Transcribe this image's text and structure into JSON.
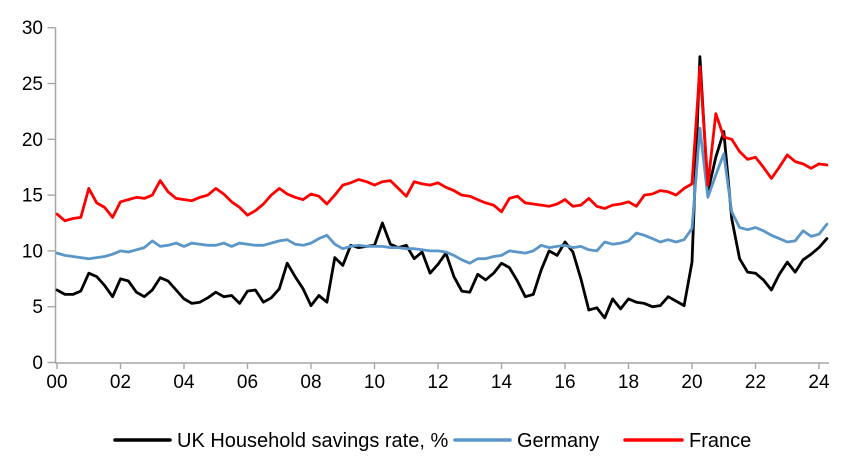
{
  "chart_data": {
    "type": "line",
    "title": "",
    "xlabel": "",
    "ylabel": "",
    "x_start_year": 2000,
    "x_step_years": 0.25,
    "frequency": "quarterly",
    "x_tick_labels": [
      "00",
      "02",
      "04",
      "06",
      "08",
      "10",
      "12",
      "14",
      "16",
      "18",
      "20",
      "22",
      "24"
    ],
    "y_ticks": [
      0,
      5,
      10,
      15,
      20,
      25,
      30
    ],
    "ylim": [
      0,
      30
    ],
    "grid": false,
    "legend_position": "bottom",
    "axis_color": "#A6A6A6",
    "series": [
      {
        "name": "UK Household savings rate, %",
        "color": "#000000",
        "values": [
          6.5,
          6.1,
          6.1,
          6.4,
          8.0,
          7.7,
          6.9,
          5.9,
          7.5,
          7.3,
          6.3,
          5.9,
          6.5,
          7.6,
          7.3,
          6.5,
          5.7,
          5.3,
          5.4,
          5.8,
          6.3,
          5.9,
          6.0,
          5.3,
          6.4,
          6.5,
          5.4,
          5.8,
          6.6,
          8.9,
          7.7,
          6.6,
          5.1,
          6.0,
          5.4,
          9.4,
          8.7,
          10.5,
          10.3,
          10.4,
          10.5,
          12.5,
          10.6,
          10.3,
          10.5,
          9.3,
          9.9,
          8.0,
          8.8,
          9.8,
          7.7,
          6.4,
          6.3,
          7.9,
          7.4,
          8.0,
          8.9,
          8.5,
          7.3,
          5.9,
          6.1,
          8.3,
          10.0,
          9.6,
          10.8,
          9.9,
          7.5,
          4.7,
          4.9,
          4.0,
          5.7,
          4.8,
          5.7,
          5.4,
          5.3,
          5.0,
          5.1,
          5.9,
          5.5,
          5.1,
          9.0,
          27.4,
          15.3,
          18.4,
          20.7,
          12.9,
          9.3,
          8.1,
          8.0,
          7.4,
          6.5,
          7.9,
          9.0,
          8.1,
          9.2,
          9.7,
          10.3,
          11.1
        ]
      },
      {
        "name": "Germany",
        "color": "#5A96C8",
        "values": [
          9.8,
          9.6,
          9.5,
          9.4,
          9.3,
          9.4,
          9.5,
          9.7,
          10.0,
          9.9,
          10.1,
          10.3,
          10.9,
          10.4,
          10.5,
          10.7,
          10.4,
          10.7,
          10.6,
          10.5,
          10.5,
          10.7,
          10.4,
          10.7,
          10.6,
          10.5,
          10.5,
          10.7,
          10.9,
          11.0,
          10.6,
          10.5,
          10.7,
          11.1,
          11.4,
          10.6,
          10.2,
          10.4,
          10.5,
          10.4,
          10.4,
          10.4,
          10.3,
          10.3,
          10.2,
          10.2,
          10.1,
          10.0,
          10.0,
          9.9,
          9.6,
          9.2,
          8.9,
          9.3,
          9.3,
          9.5,
          9.6,
          10.0,
          9.9,
          9.8,
          10.0,
          10.5,
          10.3,
          10.4,
          10.5,
          10.3,
          10.4,
          10.1,
          10.0,
          10.8,
          10.6,
          10.7,
          10.9,
          11.6,
          11.4,
          11.1,
          10.8,
          11.0,
          10.8,
          11.0,
          12.0,
          21.0,
          14.8,
          16.8,
          18.7,
          13.5,
          12.1,
          11.9,
          12.1,
          11.8,
          11.4,
          11.1,
          10.8,
          10.9,
          11.8,
          11.3,
          11.5,
          12.4
        ]
      },
      {
        "name": "France",
        "color": "#FF0000",
        "values": [
          13.3,
          12.7,
          12.9,
          13.0,
          15.6,
          14.3,
          13.9,
          13.0,
          14.4,
          14.6,
          14.8,
          14.7,
          15.0,
          16.3,
          15.3,
          14.7,
          14.6,
          14.5,
          14.8,
          15.0,
          15.6,
          15.1,
          14.4,
          13.9,
          13.2,
          13.6,
          14.2,
          15.0,
          15.6,
          15.1,
          14.8,
          14.6,
          15.1,
          14.9,
          14.2,
          15.0,
          15.9,
          16.1,
          16.4,
          16.2,
          15.9,
          16.2,
          16.3,
          15.6,
          14.9,
          16.2,
          16.0,
          15.9,
          16.1,
          15.7,
          15.4,
          15.0,
          14.9,
          14.6,
          14.3,
          14.1,
          13.5,
          14.7,
          14.9,
          14.3,
          14.2,
          14.1,
          14.0,
          14.2,
          14.6,
          14.0,
          14.1,
          14.7,
          14.0,
          13.8,
          14.1,
          14.2,
          14.4,
          14.0,
          15.0,
          15.1,
          15.4,
          15.3,
          15.0,
          15.6,
          16.0,
          26.5,
          15.9,
          22.3,
          20.2,
          20.0,
          18.9,
          18.2,
          18.4,
          17.5,
          16.5,
          17.5,
          18.6,
          18.0,
          17.8,
          17.4,
          17.8,
          17.7
        ]
      }
    ]
  },
  "legend": {
    "items": [
      {
        "label": "UK Household savings rate, %",
        "color": "#000000"
      },
      {
        "label": "Germany",
        "color": "#5A96C8"
      },
      {
        "label": "France",
        "color": "#FF0000"
      }
    ]
  }
}
